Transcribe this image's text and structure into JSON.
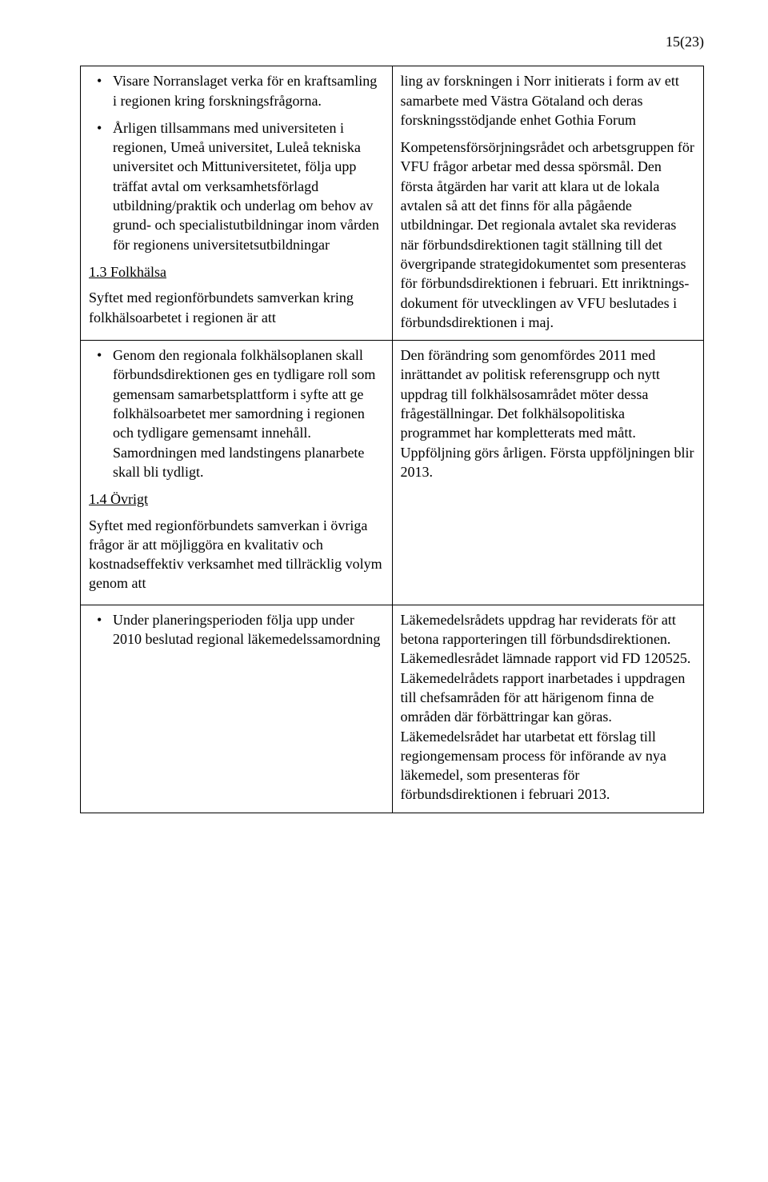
{
  "pageNumber": "15(23)",
  "rows": [
    {
      "left": {
        "items": [
          "Visare Norranslaget verka för en kraft­samling i regionen kring forskningsfrå­gorna.",
          "Årligen tillsammans med universiteten i regionen, Umeå universitet, Luleå tek­niska universitet och Mittuniversitetet, följa upp träffat avtal om verksamhets­förlagd utbildning/praktik och underlag om behov av grund- och specialistut­bildningar inom vården för regionens universitetsutbildningar"
        ],
        "sectionTitle": "1.3 Folkhälsa",
        "sectionIntro": "Syftet med regionförbundets samverkan kring folkhälsoarbetet i regionen är att"
      },
      "right": {
        "paragraphs": [
          "ling av forskningen i Norr initierats i form av ett samarbete med Västra Götaland och deras forskningsstödjande enhet Gothia Fo­rum",
          "Kompetensförsörjningsrådet och arbets­gruppen för VFU frågor arbetar med dessa spörsmål. Den första åtgärden har varit att klara ut de lokala avtalen så att det finns för alla pågående utbildningar. Det regionala avtalet ska revideras när förbundsdirektio­nen tagit ställning till det övergripande stra­tegidokumentet som presenteras för för­bundsdirektionen i februari. Ett inriktnings­dokument för utvecklingen av VFU besluta­des i förbundsdirektionen i maj."
        ]
      }
    },
    {
      "left": {
        "items": [
          "Genom den regionala folkhälsopla­nen skall förbundsdirektionen ges en tydligare roll som gemensam samar­betsplattform i syfte att ge folkhälso­arbetet mer samordning i regionen och tydligare gemensamt innehåll. Samordningen med landstingens planarbete skall bli tydligt."
        ],
        "sectionTitle": "1.4 Övrigt",
        "sectionIntro": "Syftet med regionförbundets samverkan i övriga frågor är att möjliggöra en kvalitativ och kostnadseffektiv verksamhet med till­räcklig volym genom att"
      },
      "right": {
        "paragraphs": [
          "Den förändring som genomfördes 2011 med inrättandet av politisk referensgrupp och nytt uppdrag till folkhälsosamrådet möter dessa frågeställningar. Det folkhälsopolitis­ka programmet har kompletterats med mått. Uppföljning görs årligen. Första uppfölj­ningen blir 2013."
        ]
      }
    },
    {
      "left": {
        "items": [
          "Under planeringsperioden följa upp under 2010 beslutad regional läke­medelssamordning"
        ]
      },
      "right": {
        "paragraphs": [
          "Läkemedelsrådets uppdrag har reviderats för att betona rapporteringen till förbundsdirek­tionen. Läkemedlesrådet lämnade rapport vid FD 120525. Läkemedelrådets rapport inarbetades i uppdragen till chefsamråden för att härigenom finna de områden där för­bättringar kan göras. Läkemedelsrådet har utarbetat ett förslag till regiongemensam process för införande av nya läkemedel, som presenteras för förbundsdirektionen i februa­ri 2013."
        ]
      }
    }
  ]
}
